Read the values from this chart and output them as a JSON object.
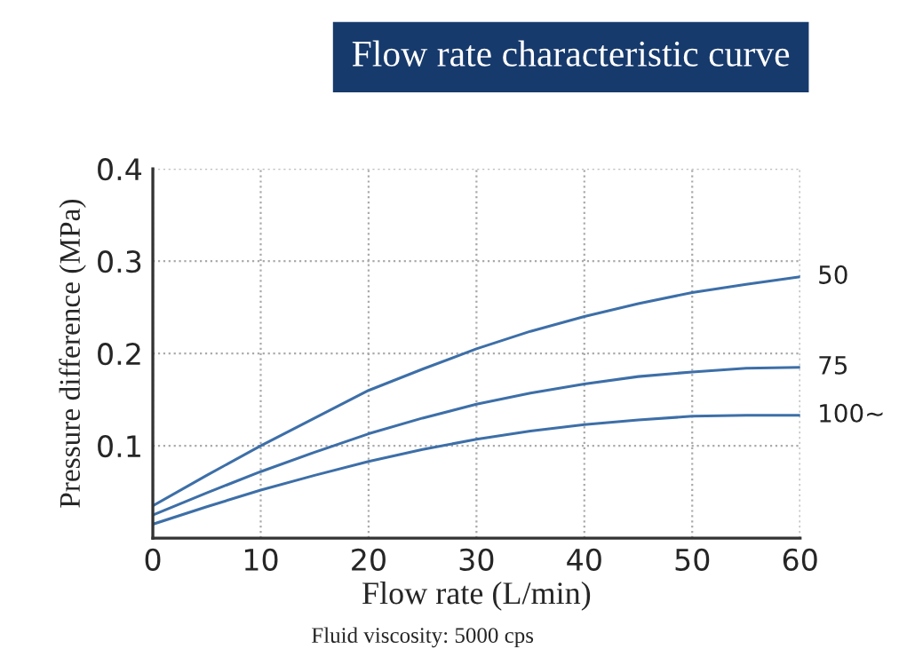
{
  "chart_data": {
    "type": "line",
    "title": "Flow rate characteristic curve",
    "xlabel": "Flow rate (L/min)",
    "ylabel": "Pressure difference (MPa)",
    "annotations": [
      "Fluid viscosity: 5000 cps"
    ],
    "x": [
      0,
      5,
      10,
      15,
      20,
      25,
      30,
      35,
      40,
      45,
      50,
      55,
      60
    ],
    "series": [
      {
        "name": "50",
        "color": "#3d6fa8",
        "values": [
          0.035,
          0.068,
          0.1,
          0.13,
          0.16,
          0.183,
          0.205,
          0.224,
          0.24,
          0.254,
          0.266,
          0.275,
          0.283
        ]
      },
      {
        "name": "75",
        "color": "#3d6fa8",
        "values": [
          0.025,
          0.049,
          0.072,
          0.093,
          0.113,
          0.13,
          0.145,
          0.157,
          0.167,
          0.175,
          0.18,
          0.184,
          0.185
        ]
      },
      {
        "name": "100~",
        "color": "#3d6fa8",
        "values": [
          0.015,
          0.034,
          0.052,
          0.068,
          0.083,
          0.096,
          0.107,
          0.116,
          0.123,
          0.128,
          0.132,
          0.133,
          0.133
        ]
      }
    ],
    "xlim": [
      0,
      60
    ],
    "xticks": [
      0,
      10,
      20,
      30,
      40,
      50,
      60
    ],
    "ylim": [
      0,
      0.4
    ],
    "yticks": [
      0.1,
      0.2,
      0.3,
      0.4
    ],
    "grid": true,
    "legend": false,
    "marker": "none",
    "line_style": "solid"
  }
}
